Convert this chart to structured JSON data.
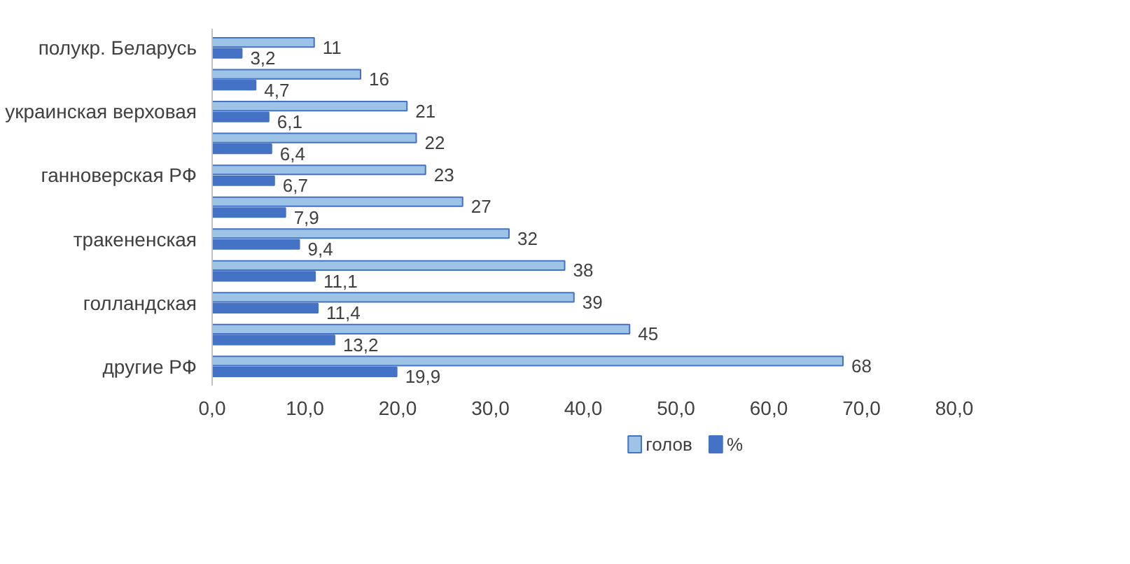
{
  "chart_data": {
    "type": "bar",
    "orientation": "horizontal",
    "categories": [
      "полукр. Беларусь",
      null,
      "украинская верховая",
      null,
      "ганноверская РФ",
      null,
      "тракененская",
      null,
      "голландская",
      null,
      "другие РФ"
    ],
    "series": [
      {
        "name": "голов",
        "color": "#9dc3e6",
        "values": [
          11,
          16,
          21,
          22,
          23,
          27,
          32,
          38,
          39,
          45,
          68
        ],
        "value_labels": [
          "11",
          "16",
          "21",
          "22",
          "23",
          "27",
          "32",
          "38",
          "39",
          "45",
          "68"
        ]
      },
      {
        "name": "%",
        "color": "#4472c4",
        "values": [
          3.2,
          4.7,
          6.1,
          6.4,
          6.7,
          7.9,
          9.4,
          11.1,
          11.4,
          13.2,
          19.9
        ],
        "value_labels": [
          "3,2",
          "4,7",
          "6,1",
          "6,4",
          "6,7",
          "7,9",
          "9,4",
          "11,1",
          "11,4",
          "13,2",
          "19,9"
        ]
      }
    ],
    "xlim": [
      0,
      80
    ],
    "xticks": [
      {
        "value": 0,
        "label": "0,0"
      },
      {
        "value": 10,
        "label": "10,0"
      },
      {
        "value": 20,
        "label": "20,0"
      },
      {
        "value": 30,
        "label": "30,0"
      },
      {
        "value": 40,
        "label": "40,0"
      },
      {
        "value": 50,
        "label": "50,0"
      },
      {
        "value": 60,
        "label": "60,0"
      },
      {
        "value": 70,
        "label": "70,0"
      },
      {
        "value": 80,
        "label": "80,0"
      }
    ],
    "legend": "bottom",
    "grid": false
  }
}
